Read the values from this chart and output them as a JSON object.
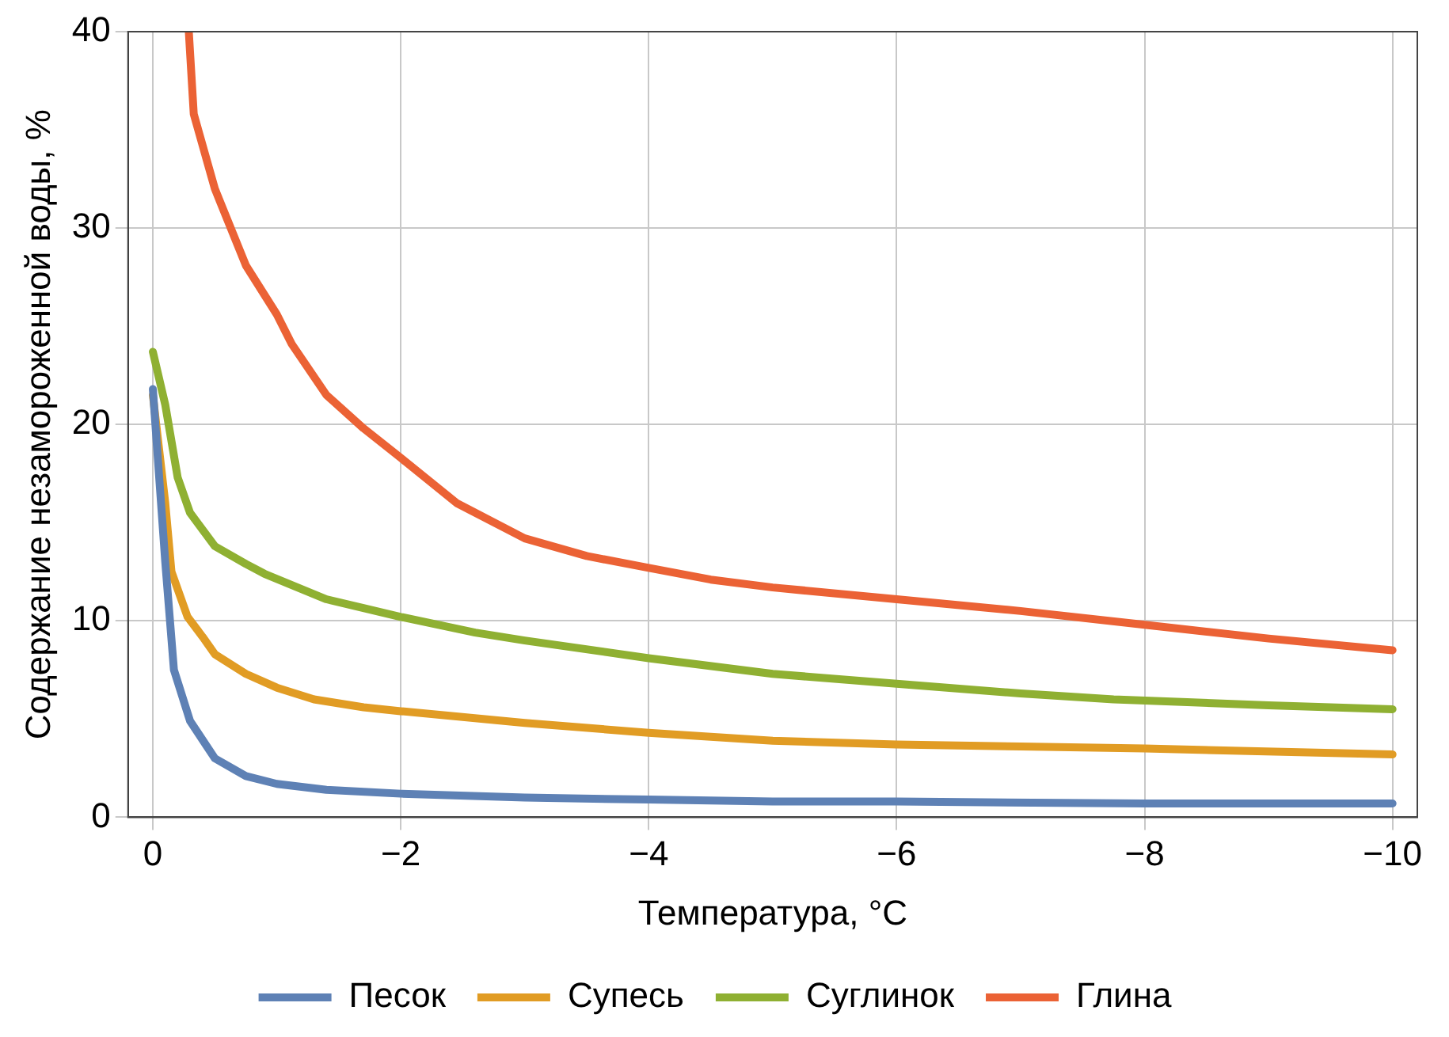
{
  "chart_data": {
    "type": "line",
    "xlabel": "Температура, °C",
    "ylabel": "Содержание незамороженной воды, %",
    "xlim": [
      0.2,
      -10.2
    ],
    "ylim": [
      0,
      40
    ],
    "xticks": [
      {
        "value": 0,
        "label": "0"
      },
      {
        "value": -2,
        "label": "−2"
      },
      {
        "value": -4,
        "label": "−4"
      },
      {
        "value": -6,
        "label": "−6"
      },
      {
        "value": -8,
        "label": "−8"
      },
      {
        "value": -10,
        "label": "−10"
      }
    ],
    "yticks": [
      0,
      10,
      20,
      30,
      40
    ],
    "grid": true,
    "legend": "bottom",
    "marker": "none",
    "line_style": "solid",
    "series": [
      {
        "name": "Песок",
        "color": "#5e81b5",
        "x": [
          0,
          -0.1,
          -0.17,
          -0.3,
          -0.5,
          -0.75,
          -1,
          -1.4,
          -2,
          -3,
          -4,
          -5,
          -6,
          -8,
          -10
        ],
        "values": [
          21.8,
          13,
          7.5,
          4.9,
          3.0,
          2.1,
          1.7,
          1.4,
          1.2,
          1.0,
          0.9,
          0.8,
          0.8,
          0.7,
          0.7
        ]
      },
      {
        "name": "Супесь",
        "color": "#e19c24",
        "x": [
          0,
          -0.1,
          -0.15,
          -0.28,
          -0.4,
          -0.5,
          -0.75,
          -1,
          -1.3,
          -1.7,
          -2,
          -3,
          -4,
          -5,
          -6,
          -7,
          -8,
          -10
        ],
        "values": [
          21.5,
          16,
          12.5,
          10.2,
          9.2,
          8.3,
          7.3,
          6.6,
          6.0,
          5.6,
          5.4,
          4.8,
          4.3,
          3.9,
          3.7,
          3.6,
          3.5,
          3.2
        ]
      },
      {
        "name": "Суглинок",
        "color": "#8fb032",
        "x": [
          0,
          -0.1,
          -0.2,
          -0.3,
          -0.5,
          -0.75,
          -0.9,
          -1.4,
          -2,
          -2.6,
          -3,
          -4,
          -5,
          -6,
          -7,
          -7.75,
          -9,
          -10
        ],
        "values": [
          23.7,
          21,
          17.3,
          15.5,
          13.8,
          12.9,
          12.4,
          11.1,
          10.2,
          9.4,
          9.0,
          8.1,
          7.3,
          6.8,
          6.3,
          6.0,
          5.7,
          5.5
        ]
      },
      {
        "name": "Глина",
        "color": "#eb6235",
        "x": [
          -0.29,
          -0.33,
          -0.5,
          -0.75,
          -1,
          -1.12,
          -1.4,
          -1.7,
          -2,
          -2.45,
          -3,
          -3.5,
          -4,
          -4.5,
          -5,
          -6,
          -7,
          -8,
          -9,
          -10
        ],
        "values": [
          40,
          35.8,
          32,
          28.1,
          25.6,
          24.1,
          21.5,
          19.8,
          18.3,
          16,
          14.2,
          13.3,
          12.7,
          12.1,
          11.7,
          11.1,
          10.5,
          9.8,
          9.1,
          8.5
        ]
      }
    ]
  }
}
